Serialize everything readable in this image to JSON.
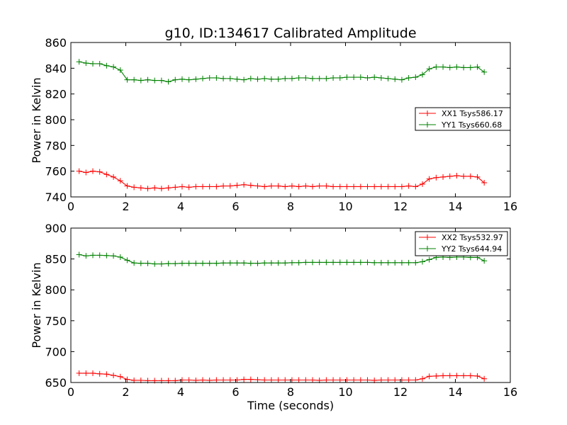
{
  "figure": {
    "title": "g10, ID:134617 Calibrated Amplitude"
  },
  "chart_data": [
    {
      "type": "line",
      "title": "g10, ID:134617 Calibrated Amplitude",
      "xlabel": "",
      "ylabel": "Power in Kelvin",
      "xlim": [
        0,
        16
      ],
      "ylim": [
        740,
        860
      ],
      "xticks": [
        "0",
        "2",
        "4",
        "6",
        "8",
        "10",
        "12",
        "14",
        "16"
      ],
      "yticks": [
        "740",
        "760",
        "780",
        "800",
        "820",
        "840",
        "860"
      ],
      "grid": false,
      "legend_position": "right",
      "x": [
        0.3,
        0.55,
        0.8,
        1.05,
        1.3,
        1.55,
        1.8,
        2.05,
        2.3,
        2.55,
        2.8,
        3.05,
        3.3,
        3.55,
        3.8,
        4.05,
        4.3,
        4.55,
        4.8,
        5.05,
        5.3,
        5.55,
        5.8,
        6.05,
        6.3,
        6.55,
        6.8,
        7.05,
        7.3,
        7.55,
        7.8,
        8.05,
        8.3,
        8.55,
        8.8,
        9.05,
        9.3,
        9.55,
        9.8,
        10.05,
        10.3,
        10.55,
        10.8,
        11.05,
        11.3,
        11.55,
        11.8,
        12.05,
        12.3,
        12.55,
        12.8,
        13.05,
        13.3,
        13.55,
        13.8,
        14.05,
        14.3,
        14.55,
        14.8,
        15.05
      ],
      "series": [
        {
          "name": "XX1 Tsys586.17",
          "color": "#ff0000",
          "values": [
            760,
            759,
            760,
            759.5,
            757.5,
            755.5,
            752.5,
            748.5,
            747.5,
            747,
            746.5,
            747,
            746.5,
            747,
            747.5,
            748,
            747.5,
            748,
            748,
            748,
            748,
            748.5,
            748.5,
            749,
            749.5,
            749,
            748.5,
            748,
            748.5,
            748.5,
            748,
            748.5,
            748,
            748.5,
            748,
            748.5,
            748.5,
            748,
            748,
            748,
            748,
            748,
            748,
            748,
            748,
            748,
            748,
            748,
            748.5,
            748,
            750,
            754,
            755,
            755.5,
            756,
            756.5,
            756,
            756,
            755.5,
            751
          ]
        },
        {
          "name": "YY1 Tsys660.68",
          "color": "#008000",
          "values": [
            845,
            844,
            843.5,
            843.5,
            842,
            841,
            838.5,
            831,
            831,
            830.5,
            831,
            830.5,
            830.5,
            829.5,
            831,
            831.5,
            831,
            831.5,
            832,
            832.5,
            832.5,
            832,
            832,
            831.5,
            831,
            832,
            831.5,
            832,
            831.5,
            831.5,
            832,
            832,
            832.5,
            832.5,
            832,
            832,
            832,
            832.5,
            832.5,
            833,
            833,
            833,
            832.5,
            833,
            832.5,
            832,
            831.5,
            831,
            832.5,
            833,
            835,
            839.5,
            841,
            841,
            840.5,
            841,
            840.5,
            840.5,
            841,
            837
          ]
        }
      ]
    },
    {
      "type": "line",
      "title": "",
      "xlabel": "Time (seconds)",
      "ylabel": "Power in Kelvin",
      "xlim": [
        0,
        16
      ],
      "ylim": [
        650,
        900
      ],
      "xticks": [
        "0",
        "2",
        "4",
        "6",
        "8",
        "10",
        "12",
        "14",
        "16"
      ],
      "yticks": [
        "650",
        "700",
        "750",
        "800",
        "850",
        "900"
      ],
      "grid": false,
      "legend_position": "top-right",
      "x": [
        0.3,
        0.55,
        0.8,
        1.05,
        1.3,
        1.55,
        1.8,
        2.05,
        2.3,
        2.55,
        2.8,
        3.05,
        3.3,
        3.55,
        3.8,
        4.05,
        4.3,
        4.55,
        4.8,
        5.05,
        5.3,
        5.55,
        5.8,
        6.05,
        6.3,
        6.55,
        6.8,
        7.05,
        7.3,
        7.55,
        7.8,
        8.05,
        8.3,
        8.55,
        8.8,
        9.05,
        9.3,
        9.55,
        9.8,
        10.05,
        10.3,
        10.55,
        10.8,
        11.05,
        11.3,
        11.55,
        11.8,
        12.05,
        12.3,
        12.55,
        12.8,
        13.05,
        13.3,
        13.55,
        13.8,
        14.05,
        14.3,
        14.55,
        14.8,
        15.05
      ],
      "series": [
        {
          "name": "XX2 Tsys532.97",
          "color": "#ff0000",
          "values": [
            665,
            665,
            665,
            664,
            663.5,
            661.5,
            659.5,
            655,
            653.5,
            653.5,
            653,
            653,
            653,
            653,
            653,
            654,
            654,
            653.5,
            654,
            653.5,
            654,
            654,
            654,
            654,
            655,
            655,
            654.5,
            654,
            654,
            654,
            654,
            654,
            654,
            654,
            654,
            653.5,
            654,
            654,
            654,
            654,
            654,
            654,
            654,
            653.5,
            654,
            654,
            654,
            654,
            654,
            654,
            656,
            660,
            660.5,
            661,
            661,
            661,
            661,
            661,
            660.5,
            656
          ]
        },
        {
          "name": "YY2 Tsys644.94",
          "color": "#008000",
          "values": [
            857,
            855,
            856,
            856,
            855.5,
            855,
            853,
            848,
            843.5,
            843,
            843,
            842,
            842,
            842.5,
            842.5,
            843,
            843,
            843,
            843,
            843,
            843,
            843.5,
            843.5,
            843.5,
            843.5,
            843,
            843,
            843.5,
            843.5,
            843.5,
            843.5,
            844,
            844,
            844.5,
            844.5,
            844.5,
            844.5,
            844.5,
            844.5,
            844.5,
            844.5,
            844.5,
            844.5,
            844,
            844,
            844,
            844,
            844,
            844,
            844,
            845.5,
            849,
            852.5,
            853,
            852.5,
            853,
            853,
            852.5,
            852.5,
            847
          ]
        }
      ]
    }
  ]
}
